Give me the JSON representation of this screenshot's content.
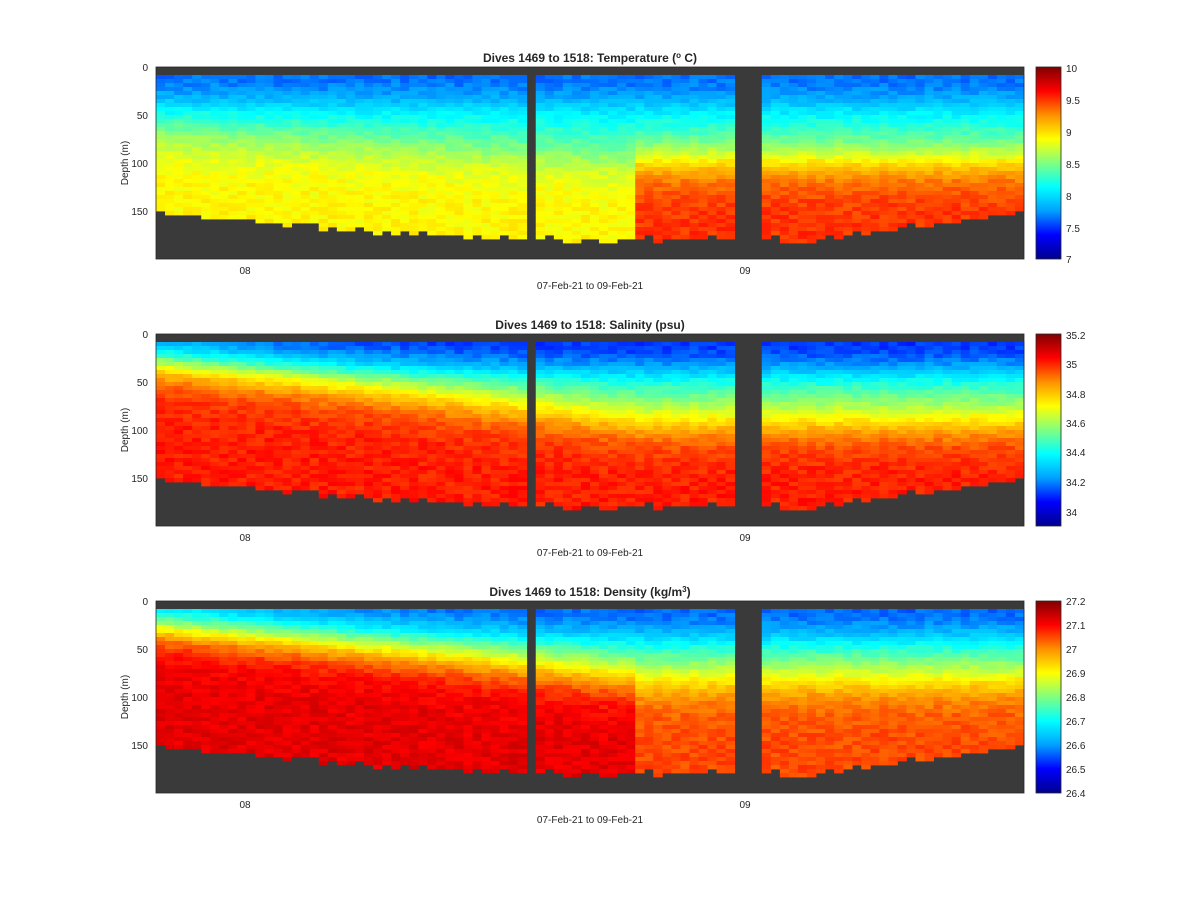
{
  "colormap": [
    "#00008f",
    "#0000ff",
    "#00a0ff",
    "#00ffff",
    "#80ff80",
    "#ffff00",
    "#ff9000",
    "#ff0000",
    "#800000"
  ],
  "no_data_color": "#3a3a3a",
  "chart_data": [
    {
      "type": "heatmap",
      "title_main": "Dives 1469 to 1518: Temperature (",
      "title_sup": "o",
      "title_end": " C)",
      "xlabel": "07-Feb-21 to 09-Feb-21",
      "ylabel": "Depth (m)",
      "x_ticks": [
        "08",
        "09"
      ],
      "y_ticks": [
        "0",
        "50",
        "100",
        "150"
      ],
      "y_range": [
        0,
        200
      ],
      "colorbar_ticks": [
        "10",
        "9.5",
        "9",
        "8.5",
        "8",
        "7.5",
        "7"
      ],
      "colorbar_range": [
        7,
        10
      ],
      "surface_value": 7.6,
      "mid_value": 8.2,
      "deep_value": 8.9,
      "late_deep_value": 9.5,
      "layer_depth_start": 70,
      "layer_depth_end": 95
    },
    {
      "type": "heatmap",
      "title_main": "Dives 1469 to 1518: Salinity (psu)",
      "title_sup": "",
      "title_end": "",
      "xlabel": "07-Feb-21 to 09-Feb-21",
      "ylabel": "Depth (m)",
      "x_ticks": [
        "08",
        "09"
      ],
      "y_ticks": [
        "0",
        "50",
        "100",
        "150"
      ],
      "y_range": [
        0,
        200
      ],
      "colorbar_ticks": [
        "35.2",
        "35",
        "34.8",
        "34.6",
        "34.4",
        "34.2",
        "34"
      ],
      "colorbar_range": [
        33.9,
        35.25
      ],
      "surface_value": 34.1,
      "mid_value": 34.5,
      "deep_value": 35.05,
      "late_deep_value": 35.05,
      "layer_depth_start": 30,
      "layer_depth_end": 90
    },
    {
      "type": "heatmap",
      "title_main": "Dives 1469 to 1518: Density (kg/m",
      "title_sup": "3",
      "title_end": ")",
      "xlabel": "07-Feb-21 to 09-Feb-21",
      "ylabel": "Depth (m)",
      "x_ticks": [
        "08",
        "09"
      ],
      "y_ticks": [
        "0",
        "50",
        "100",
        "150"
      ],
      "y_range": [
        0,
        200
      ],
      "colorbar_ticks": [
        "27.2",
        "27.1",
        "27",
        "26.9",
        "26.8",
        "26.7",
        "26.6",
        "26.5",
        "26.4"
      ],
      "colorbar_range": [
        26.4,
        27.2
      ],
      "surface_value": 26.55,
      "mid_value": 26.75,
      "deep_value": 27.12,
      "late_deep_value": 27.05,
      "layer_depth_start": 25,
      "layer_depth_end": 80
    }
  ]
}
